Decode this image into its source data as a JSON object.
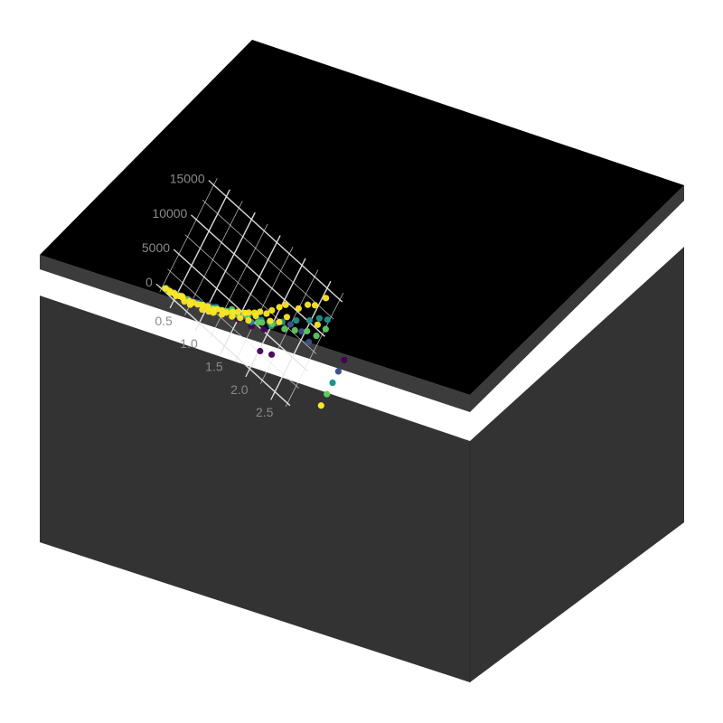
{
  "colors": {
    "background": "#ffffff",
    "box_body": "#333333",
    "slab_edge": "#3c3c3c",
    "plot_background": "#000000",
    "grid": "#e6e6e6",
    "tick_label": "#8a8a8a"
  },
  "chart_data": {
    "type": "scatter",
    "title": "",
    "xlabel": "",
    "ylabel": "",
    "xlim": [
      0.2,
      2.8
    ],
    "ylim": [
      -500,
      16000
    ],
    "x_ticks": [
      "0.5",
      "1.0",
      "1.5",
      "2.0",
      "2.5"
    ],
    "x_tick_values": [
      0.5,
      1.0,
      1.5,
      2.0,
      2.5
    ],
    "y_ticks": [
      "0",
      "5000",
      "10000",
      "15000"
    ],
    "y_tick_values": [
      0,
      5000,
      10000,
      15000
    ],
    "grid": true,
    "legend": {
      "placement": "right",
      "entries": [
        {
          "color": "#440154"
        },
        {
          "color": "#3b528b"
        },
        {
          "color": "#21918c"
        },
        {
          "color": "#5ec962"
        },
        {
          "color": "#fde725"
        }
      ]
    },
    "series": [
      {
        "color": "#440154",
        "points": [
          [
            0.32,
            400
          ],
          [
            0.52,
            900
          ],
          [
            0.7,
            1500
          ],
          [
            0.9,
            2100
          ],
          [
            1.05,
            2800
          ],
          [
            1.2,
            3200
          ],
          [
            1.5,
            3900
          ],
          [
            1.73,
            4400
          ],
          [
            1.92,
            5200
          ],
          [
            2.02,
            2700
          ],
          [
            2.2,
            3400
          ]
        ]
      },
      {
        "color": "#3b528b",
        "points": [
          [
            0.35,
            500
          ],
          [
            0.55,
            1000
          ],
          [
            0.8,
            1700
          ],
          [
            1.0,
            2600
          ],
          [
            1.25,
            3400
          ],
          [
            1.55,
            4500
          ],
          [
            1.78,
            5600
          ],
          [
            2.05,
            6900
          ],
          [
            2.25,
            8100
          ],
          [
            2.45,
            8400
          ],
          [
            2.62,
            8000
          ]
        ]
      },
      {
        "color": "#21918c",
        "points": [
          [
            0.3,
            300
          ],
          [
            0.45,
            600
          ],
          [
            0.62,
            1100
          ],
          [
            0.85,
            1900
          ],
          [
            1.02,
            2500
          ],
          [
            1.12,
            3100
          ],
          [
            1.32,
            3800
          ],
          [
            1.5,
            4500
          ],
          [
            1.62,
            5200
          ],
          [
            1.82,
            5900
          ],
          [
            1.95,
            6400
          ],
          [
            2.12,
            7600
          ],
          [
            2.3,
            9000
          ],
          [
            2.48,
            10200
          ],
          [
            2.6,
            11300
          ],
          [
            2.72,
            11900
          ],
          [
            1.45,
            4200
          ],
          [
            1.7,
            4800
          ],
          [
            2.0,
            6200
          ]
        ]
      },
      {
        "color": "#5ec962",
        "points": [
          [
            0.31,
            450
          ],
          [
            0.5,
            800
          ],
          [
            0.68,
            1300
          ],
          [
            0.9,
            2000
          ],
          [
            1.08,
            2700
          ],
          [
            1.28,
            3600
          ],
          [
            1.42,
            4000
          ],
          [
            1.6,
            5000
          ],
          [
            1.8,
            5400
          ],
          [
            2.0,
            6500
          ],
          [
            2.2,
            7100
          ],
          [
            2.35,
            7900
          ],
          [
            2.52,
            8900
          ],
          [
            2.68,
            9300
          ],
          [
            2.76,
            10800
          ],
          [
            1.35,
            4300
          ],
          [
            1.85,
            5700
          ]
        ]
      },
      {
        "color": "#fde725",
        "points": [
          [
            0.3,
            350
          ],
          [
            0.38,
            500
          ],
          [
            0.45,
            700
          ],
          [
            0.5,
            600
          ],
          [
            0.55,
            900
          ],
          [
            0.6,
            1000
          ],
          [
            0.65,
            800
          ],
          [
            0.72,
            1300
          ],
          [
            0.78,
            1500
          ],
          [
            0.85,
            1700
          ],
          [
            0.92,
            2100
          ],
          [
            1.0,
            2400
          ],
          [
            1.05,
            2000
          ],
          [
            1.1,
            2600
          ],
          [
            1.15,
            3000
          ],
          [
            1.22,
            3300
          ],
          [
            1.3,
            3500
          ],
          [
            1.38,
            4100
          ],
          [
            1.45,
            4600
          ],
          [
            1.55,
            5100
          ],
          [
            1.6,
            5500
          ],
          [
            1.68,
            6000
          ],
          [
            1.75,
            6600
          ],
          [
            1.85,
            7000
          ],
          [
            1.9,
            7800
          ],
          [
            1.98,
            8800
          ],
          [
            2.05,
            9600
          ],
          [
            2.15,
            8500
          ],
          [
            2.25,
            10400
          ],
          [
            2.35,
            11600
          ],
          [
            2.45,
            12200
          ],
          [
            2.55,
            13900
          ],
          [
            2.62,
            10500
          ],
          [
            1.25,
            2900
          ],
          [
            1.4,
            3600
          ],
          [
            1.52,
            4200
          ],
          [
            1.65,
            4700
          ],
          [
            1.72,
            5800
          ],
          [
            0.4,
            450
          ],
          [
            0.58,
            1100
          ],
          [
            0.75,
            1000
          ],
          [
            0.95,
            1600
          ],
          [
            1.12,
            2300
          ],
          [
            1.95,
            6600
          ],
          [
            2.08,
            7300
          ]
        ]
      }
    ]
  }
}
